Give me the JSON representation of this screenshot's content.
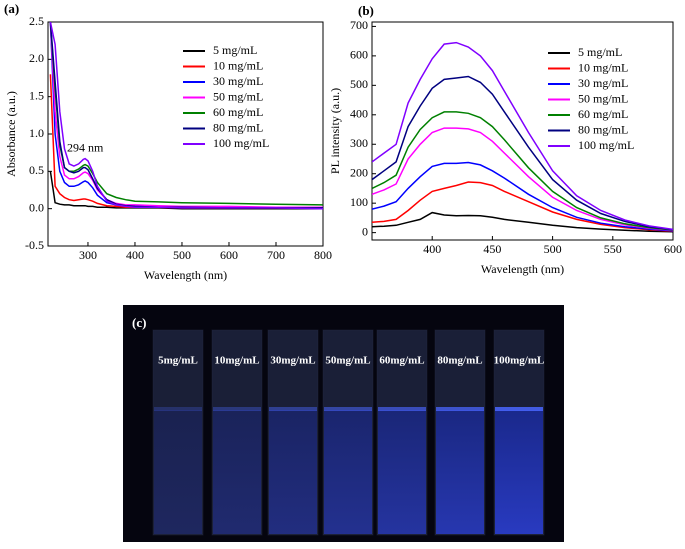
{
  "chart_data": [
    {
      "type": "line",
      "panel": "(a)",
      "x_label": "Wavelength (nm)",
      "y_label": "Absorbance (a.u.)",
      "annotation": "294 nm",
      "x": [
        220,
        230,
        240,
        250,
        260,
        270,
        280,
        290,
        294,
        300,
        310,
        320,
        340,
        360,
        380,
        400,
        450,
        500,
        600,
        700,
        800
      ],
      "xlim": [
        215,
        800
      ],
      "xticks": [
        300,
        400,
        500,
        600,
        700,
        800
      ],
      "ylim": [
        -0.5,
        2.5
      ],
      "yticks": [
        -0.5,
        {
          "value": 0,
          "label": "0.0"
        },
        0.5,
        {
          "value": 1,
          "label": "1.0"
        },
        1.5,
        {
          "value": 2,
          "label": "2.0"
        },
        2.5
      ],
      "legend": "upper right",
      "series": [
        {
          "name": "5 mg/mL",
          "color": "#000000",
          "values": [
            0.5,
            0.08,
            0.06,
            0.05,
            0.05,
            0.04,
            0.04,
            0.04,
            0.04,
            0.03,
            0.03,
            0.02,
            0.02,
            0.01,
            0.01,
            0.01,
            0.01,
            0,
            0,
            0,
            0
          ]
        },
        {
          "name": "10 mg/mL",
          "color": "#ff0000",
          "values": [
            1.8,
            0.3,
            0.2,
            0.15,
            0.12,
            0.11,
            0.12,
            0.13,
            0.13,
            0.12,
            0.1,
            0.07,
            0.04,
            0.03,
            0.02,
            0.02,
            0.02,
            0.01,
            0.01,
            0.01,
            0.01
          ]
        },
        {
          "name": "30 mg/mL",
          "color": "#0000ff",
          "values": [
            2.5,
            1.0,
            0.5,
            0.35,
            0.3,
            0.3,
            0.32,
            0.36,
            0.37,
            0.35,
            0.28,
            0.18,
            0.08,
            0.05,
            0.04,
            0.03,
            0.03,
            0.02,
            0.02,
            0.02,
            0.01
          ]
        },
        {
          "name": "50 mg/mL",
          "color": "#ff00ff",
          "values": [
            2.5,
            1.3,
            0.7,
            0.45,
            0.4,
            0.4,
            0.43,
            0.48,
            0.49,
            0.47,
            0.38,
            0.25,
            0.12,
            0.07,
            0.05,
            0.05,
            0.04,
            0.03,
            0.03,
            0.02,
            0.02
          ]
        },
        {
          "name": "60 mg/mL",
          "color": "#008000",
          "values": [
            2.5,
            1.6,
            0.85,
            0.55,
            0.5,
            0.5,
            0.53,
            0.58,
            0.59,
            0.57,
            0.47,
            0.35,
            0.2,
            0.15,
            0.12,
            0.1,
            0.09,
            0.08,
            0.07,
            0.06,
            0.05
          ]
        },
        {
          "name": "80 mg/mL",
          "color": "#000080",
          "values": [
            2.5,
            1.7,
            0.9,
            0.55,
            0.5,
            0.48,
            0.5,
            0.55,
            0.55,
            0.52,
            0.4,
            0.27,
            0.12,
            0.06,
            0.04,
            0.03,
            0.02,
            0.02,
            0.01,
            0.01,
            0.01
          ]
        },
        {
          "name": "100 mg/mL",
          "color": "#8000ff",
          "values": [
            2.5,
            2.2,
            1.3,
            0.8,
            0.6,
            0.57,
            0.6,
            0.66,
            0.67,
            0.64,
            0.5,
            0.3,
            0.1,
            0.05,
            0.03,
            0.02,
            0.02,
            0.01,
            0.01,
            0.01,
            0
          ]
        }
      ]
    },
    {
      "type": "line",
      "panel": "(b)",
      "x_label": "Wavelength (nm)",
      "y_label": "PL intensity (a.u.)",
      "x": [
        350,
        360,
        370,
        380,
        390,
        400,
        410,
        420,
        430,
        440,
        450,
        460,
        480,
        500,
        520,
        540,
        560,
        580,
        600
      ],
      "xlim": [
        350,
        600
      ],
      "xticks": [
        400,
        450,
        500,
        550,
        600
      ],
      "ylim": [
        -25,
        715
      ],
      "yticks": [
        0,
        100,
        200,
        300,
        400,
        500,
        600,
        700
      ],
      "legend": "upper right",
      "series": [
        {
          "name": "5 mg/mL",
          "color": "#000000",
          "values": [
            20,
            22,
            25,
            35,
            45,
            68,
            60,
            57,
            58,
            57,
            52,
            45,
            35,
            25,
            17,
            12,
            8,
            5,
            3
          ]
        },
        {
          "name": "10 mg/mL",
          "color": "#ff0000",
          "values": [
            35,
            38,
            45,
            75,
            110,
            140,
            150,
            160,
            172,
            170,
            160,
            140,
            105,
            70,
            45,
            28,
            17,
            10,
            5
          ]
        },
        {
          "name": "30 mg/mL",
          "color": "#0000ff",
          "values": [
            80,
            90,
            105,
            150,
            190,
            225,
            235,
            235,
            238,
            230,
            210,
            185,
            130,
            85,
            52,
            32,
            20,
            12,
            6
          ]
        },
        {
          "name": "50 mg/mL",
          "color": "#ff00ff",
          "values": [
            130,
            145,
            165,
            250,
            300,
            340,
            355,
            355,
            352,
            340,
            310,
            270,
            190,
            120,
            75,
            45,
            27,
            15,
            8
          ]
        },
        {
          "name": "60 mg/mL",
          "color": "#008000",
          "values": [
            150,
            170,
            195,
            290,
            350,
            390,
            410,
            410,
            405,
            390,
            360,
            315,
            220,
            140,
            85,
            50,
            30,
            17,
            9
          ]
        },
        {
          "name": "80 mg/mL",
          "color": "#000080",
          "values": [
            180,
            210,
            240,
            360,
            430,
            490,
            520,
            525,
            530,
            510,
            470,
            410,
            290,
            180,
            110,
            65,
            38,
            20,
            10
          ]
        },
        {
          "name": "100 mg/mL",
          "color": "#8000ff",
          "values": [
            240,
            270,
            300,
            440,
            520,
            590,
            640,
            645,
            630,
            600,
            550,
            480,
            340,
            210,
            125,
            75,
            43,
            23,
            11
          ]
        }
      ]
    }
  ],
  "photo": {
    "panel": "(c)",
    "samples": [
      "5mg/mL",
      "10mg/mL",
      "30mg/mL",
      "50mg/mL",
      "60mg/mL",
      "80mg/mL",
      "100mg/mL"
    ]
  }
}
